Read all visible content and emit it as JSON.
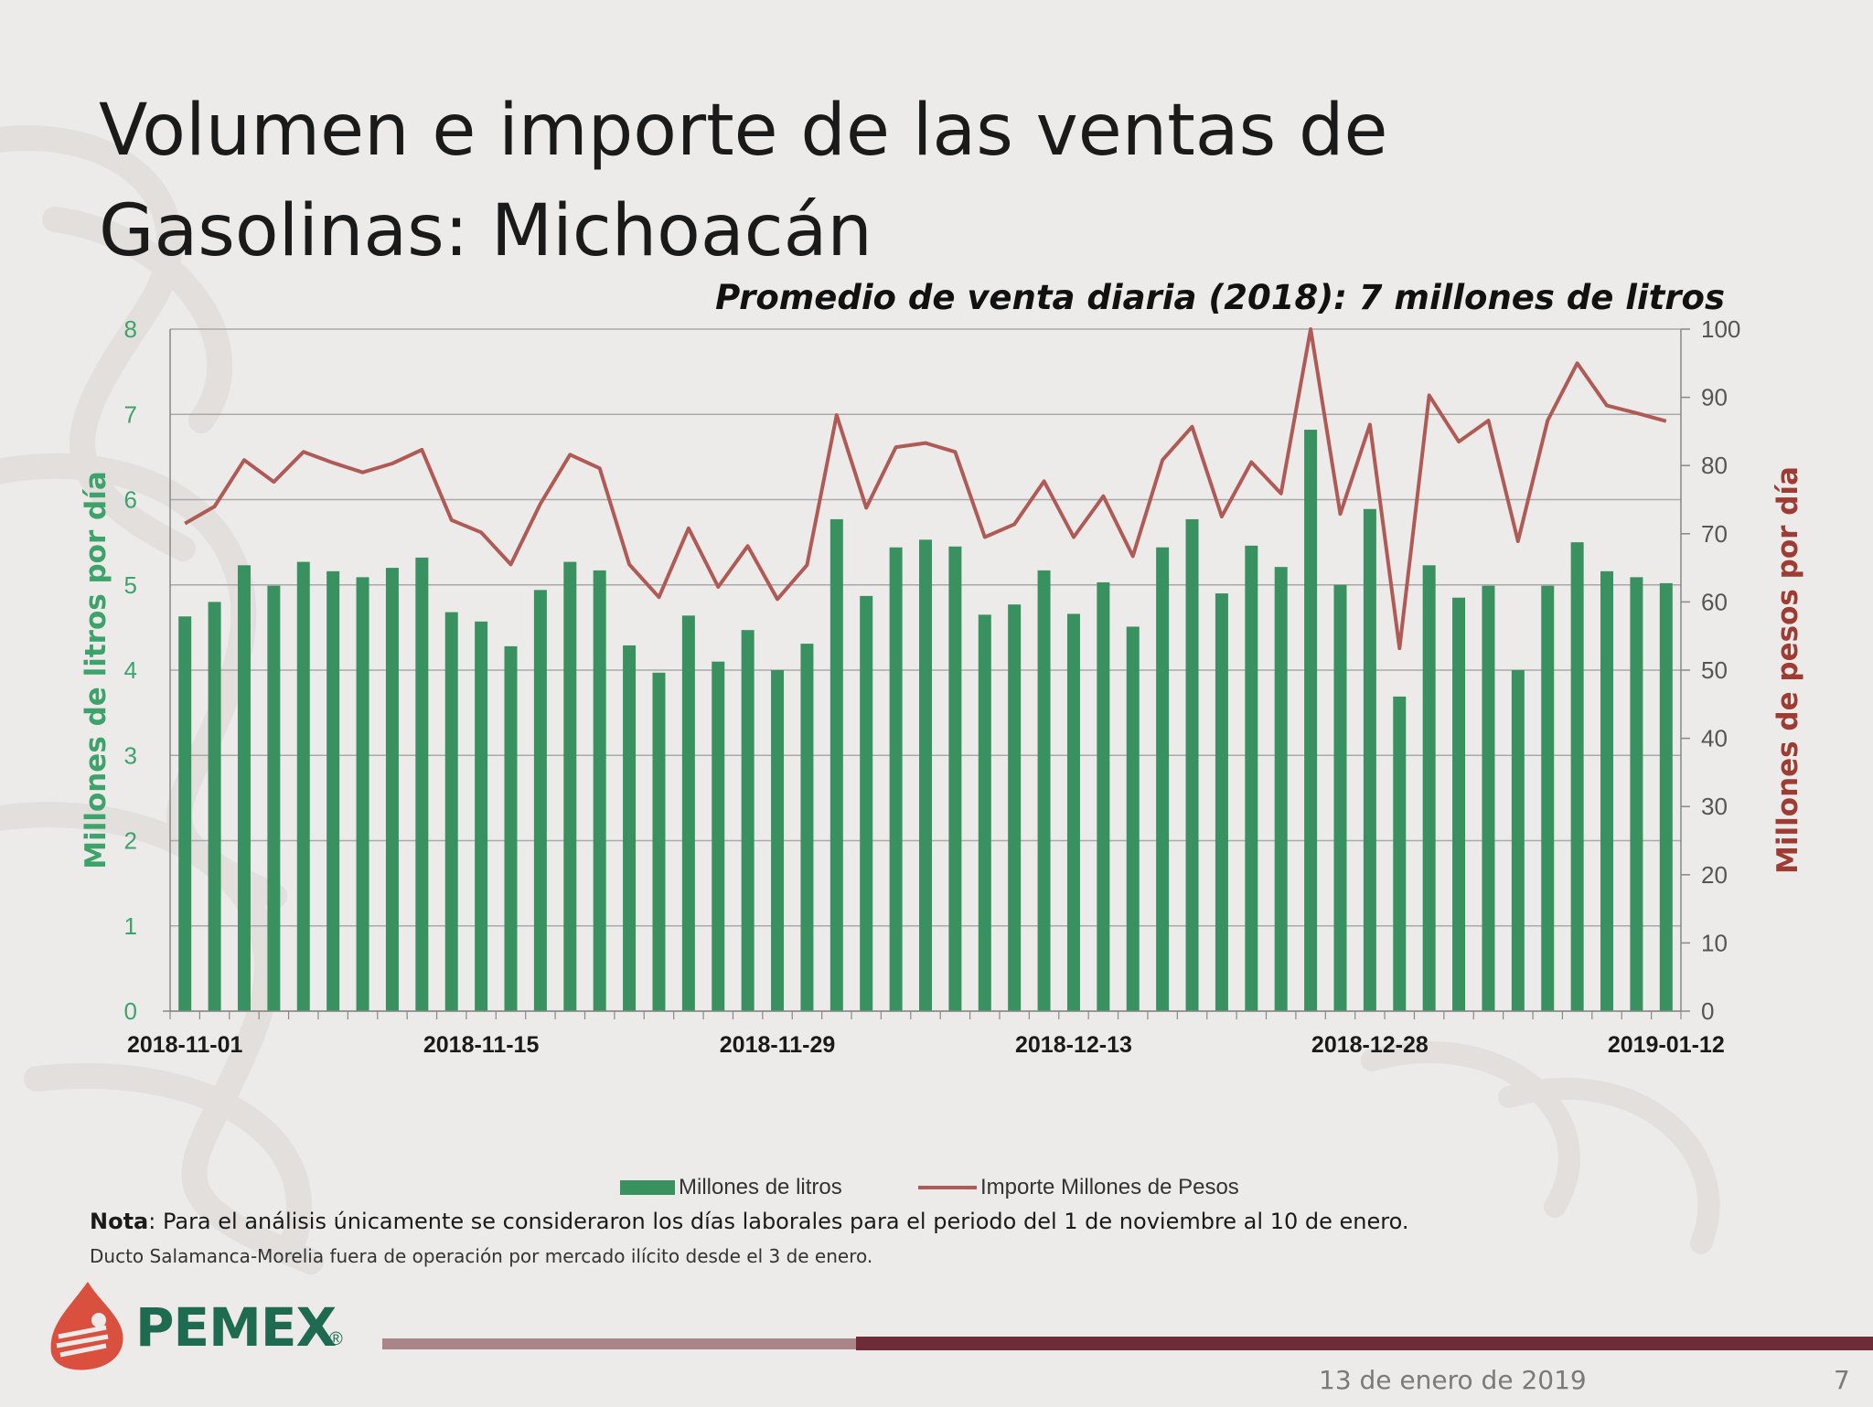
{
  "slide": {
    "title_line1": "Volumen e importe de las ventas de",
    "title_line2": "Gasolinas: Michoacán",
    "subtitle": "Promedio de venta diaria (2018): 7 millones de litros",
    "note_label": "Nota",
    "note_text": ": Para el análisis únicamente se consideraron los días laborales para el periodo del 1 de noviembre al 10 de enero.",
    "note2": "Ducto Salamanca-Morelia fuera de operación por mercado ilícito desde el 3 de enero.",
    "logo_text": "PEMEX",
    "logo_reg": "®",
    "footer_date": "13 de enero de 2019",
    "page_number": "7"
  },
  "colors": {
    "bar": "#3a9160",
    "line": "#b05a55",
    "left_axis": "#3ea36a",
    "right_axis": "#9e3b32"
  },
  "chart_data": {
    "type": "bar",
    "ylabel": "Millones de litros por día",
    "y2label": "Millones de pesos por día",
    "ylim": [
      0,
      8
    ],
    "y2lim": [
      0,
      100
    ],
    "yticks": [
      0,
      1,
      2,
      3,
      4,
      5,
      6,
      7,
      8
    ],
    "y2ticks": [
      0,
      10,
      20,
      30,
      40,
      50,
      60,
      70,
      80,
      90,
      100
    ],
    "xtick_labels": [
      "2018-11-01",
      "2018-11-15",
      "2018-11-29",
      "2018-12-13",
      "2018-12-28",
      "2019-01-12"
    ],
    "xtick_indices": [
      0,
      10,
      20,
      30,
      40,
      50
    ],
    "grid": true,
    "legend_position": "bottom",
    "series": [
      {
        "name": "Millones de litros",
        "type": "bar",
        "axis": "left",
        "values": [
          4.63,
          4.8,
          5.23,
          4.99,
          5.27,
          5.16,
          5.09,
          5.2,
          5.32,
          4.68,
          4.57,
          4.28,
          4.94,
          5.27,
          5.17,
          4.29,
          3.97,
          4.64,
          4.1,
          4.47,
          4.0,
          4.31,
          5.77,
          4.87,
          5.44,
          5.53,
          5.45,
          4.65,
          4.77,
          5.17,
          4.66,
          5.03,
          4.51,
          5.44,
          5.77,
          4.9,
          5.46,
          5.21,
          6.82,
          5.0,
          5.89,
          3.69,
          5.23,
          4.85,
          4.99,
          4.0,
          4.99,
          5.5,
          5.16,
          5.09,
          5.02
        ]
      },
      {
        "name": "Importe Millones de Pesos",
        "type": "line",
        "axis": "right",
        "values": [
          71.5,
          74,
          80.8,
          77.6,
          82,
          80.4,
          79,
          80.3,
          82.3,
          72,
          70.2,
          65.5,
          74.4,
          81.6,
          79.6,
          65.5,
          60.7,
          70.8,
          62.2,
          68.2,
          60.4,
          65.4,
          87.4,
          73.8,
          82.7,
          83.3,
          82,
          69.5,
          71.4,
          77.7,
          69.5,
          75.5,
          66.7,
          80.8,
          85.7,
          72.5,
          80.5,
          75.9,
          100,
          72.9,
          86,
          53.2,
          90.3,
          83.5,
          86.6,
          68.9,
          86.6,
          95,
          88.8,
          87.7,
          86.5
        ]
      }
    ]
  }
}
